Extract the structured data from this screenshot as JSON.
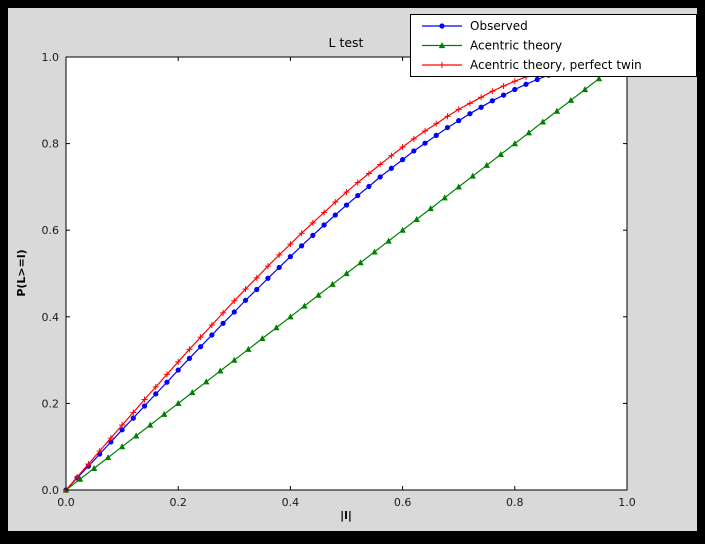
{
  "window": {
    "outer_background": "#000000",
    "figure_background": "#d9d9d9",
    "plot_background": "#ffffff"
  },
  "chart_data": {
    "type": "line",
    "title": "L test",
    "xlabel": "|l|",
    "ylabel": "P(L>=l)",
    "xlim": [
      0,
      1
    ],
    "ylim": [
      0,
      1
    ],
    "xticks": [
      0,
      0.2,
      0.4,
      0.6,
      0.8,
      1.0
    ],
    "xtick_labels": [
      "0.0",
      "0.2",
      "0.4",
      "0.6",
      "0.8",
      "1.0"
    ],
    "yticks": [
      0,
      0.2,
      0.4,
      0.6,
      0.8,
      1.0
    ],
    "ytick_labels": [
      "0.0",
      "0.2",
      "0.4",
      "0.6",
      "0.8",
      "1.0"
    ],
    "grid": false,
    "legend": {
      "position": "upper right",
      "entries": [
        "Observed",
        "Acentric theory",
        "Acentric theory, perfect twin"
      ]
    },
    "series": [
      {
        "name": "Observed",
        "color": "#0000ff",
        "marker": "circle",
        "x": [
          0,
          0.02,
          0.04,
          0.06,
          0.08,
          0.1,
          0.12,
          0.14,
          0.16,
          0.18,
          0.2,
          0.22,
          0.24,
          0.26,
          0.28,
          0.3,
          0.32,
          0.34,
          0.36,
          0.38,
          0.4,
          0.42,
          0.44,
          0.46,
          0.48,
          0.5,
          0.52,
          0.54,
          0.56,
          0.58,
          0.6,
          0.62,
          0.64,
          0.66,
          0.68,
          0.7,
          0.72,
          0.74,
          0.76,
          0.78,
          0.8,
          0.82,
          0.84,
          0.86
        ],
        "y": [
          0,
          0.028,
          0.055,
          0.083,
          0.111,
          0.139,
          0.166,
          0.194,
          0.222,
          0.249,
          0.277,
          0.304,
          0.331,
          0.358,
          0.385,
          0.411,
          0.438,
          0.463,
          0.489,
          0.514,
          0.539,
          0.564,
          0.588,
          0.612,
          0.635,
          0.658,
          0.68,
          0.701,
          0.723,
          0.743,
          0.763,
          0.783,
          0.801,
          0.819,
          0.837,
          0.853,
          0.869,
          0.884,
          0.899,
          0.912,
          0.925,
          0.937,
          0.948,
          0.958
        ]
      },
      {
        "name": "Acentric theory",
        "color": "#008000",
        "marker": "triangle-up",
        "x": [
          0,
          0.025,
          0.05,
          0.075,
          0.1,
          0.125,
          0.15,
          0.175,
          0.2,
          0.225,
          0.25,
          0.275,
          0.3,
          0.325,
          0.35,
          0.375,
          0.4,
          0.425,
          0.45,
          0.475,
          0.5,
          0.525,
          0.55,
          0.575,
          0.6,
          0.625,
          0.65,
          0.675,
          0.7,
          0.725,
          0.75,
          0.775,
          0.8,
          0.825,
          0.85,
          0.875,
          0.9,
          0.925,
          0.95
        ],
        "y": [
          0,
          0.025,
          0.05,
          0.075,
          0.1,
          0.125,
          0.15,
          0.175,
          0.2,
          0.225,
          0.25,
          0.275,
          0.3,
          0.325,
          0.35,
          0.375,
          0.4,
          0.425,
          0.45,
          0.475,
          0.5,
          0.525,
          0.55,
          0.575,
          0.6,
          0.625,
          0.65,
          0.675,
          0.7,
          0.725,
          0.75,
          0.775,
          0.8,
          0.825,
          0.85,
          0.875,
          0.9,
          0.925,
          0.95
        ]
      },
      {
        "name": "Acentric theory, perfect twin",
        "color": "#ff0000",
        "marker": "plus",
        "x": [
          0,
          0.02,
          0.04,
          0.06,
          0.08,
          0.1,
          0.12,
          0.14,
          0.16,
          0.18,
          0.2,
          0.22,
          0.24,
          0.26,
          0.28,
          0.3,
          0.32,
          0.34,
          0.36,
          0.38,
          0.4,
          0.42,
          0.44,
          0.46,
          0.48,
          0.5,
          0.52,
          0.54,
          0.56,
          0.58,
          0.6,
          0.62,
          0.64,
          0.66,
          0.68,
          0.7,
          0.72,
          0.74,
          0.76,
          0.78,
          0.8,
          0.82,
          0.84,
          0.86,
          0.88
        ],
        "y": [
          0,
          0.03,
          0.06,
          0.09,
          0.12,
          0.15,
          0.179,
          0.209,
          0.238,
          0.267,
          0.296,
          0.325,
          0.353,
          0.381,
          0.409,
          0.437,
          0.464,
          0.49,
          0.517,
          0.543,
          0.568,
          0.593,
          0.617,
          0.641,
          0.665,
          0.688,
          0.71,
          0.731,
          0.752,
          0.772,
          0.792,
          0.811,
          0.829,
          0.846,
          0.863,
          0.879,
          0.893,
          0.907,
          0.921,
          0.933,
          0.944,
          0.954,
          0.964,
          0.972,
          0.979
        ]
      }
    ]
  }
}
